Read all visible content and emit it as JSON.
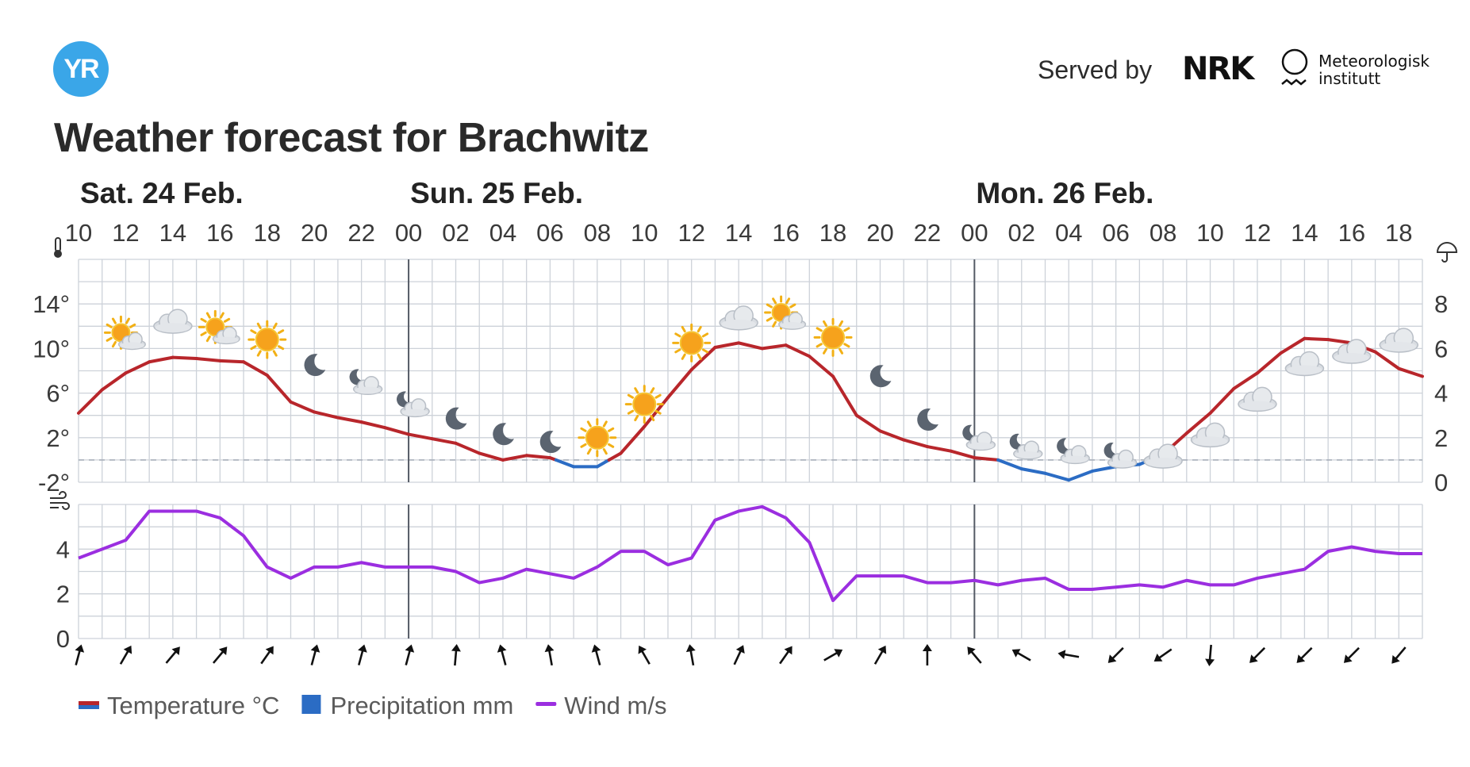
{
  "header": {
    "logo_text": "YR",
    "served_by": "Served by",
    "nrk_text": "NRK",
    "met_line1": "Meteorologisk",
    "met_line2": "institutt",
    "title": "Weather forecast for Brachwitz"
  },
  "colors": {
    "temp_warm": "#b8262b",
    "temp_cold": "#2b6cc4",
    "precip": "#2b6cc4",
    "wind": "#9b2ee0",
    "grid": "#cdd2d9",
    "logo": "#3aa6e8"
  },
  "icons": [
    "thermometer-icon",
    "umbrella-icon",
    "wind-icon",
    "sun-icon",
    "moon-icon",
    "cloud-icon",
    "partly-cloudy-day-icon",
    "partly-cloudy-night-icon",
    "wind-arrow-icon"
  ],
  "chart_data": {
    "type": "line",
    "days": [
      {
        "label": "Sat. 24 Feb.",
        "start_hour_index": 0
      },
      {
        "label": "Sun. 25 Feb.",
        "start_hour_index": 14
      },
      {
        "label": "Mon. 26 Feb.",
        "start_hour_index": 38
      }
    ],
    "hour_labels": [
      "10",
      "12",
      "14",
      "16",
      "18",
      "20",
      "22",
      "00",
      "02",
      "04",
      "06",
      "08",
      "10",
      "12",
      "14",
      "16",
      "18",
      "20",
      "22",
      "00",
      "02",
      "04",
      "06",
      "08",
      "10",
      "12",
      "14",
      "16",
      "18"
    ],
    "hour_label_indices": [
      0,
      2,
      4,
      6,
      8,
      10,
      12,
      14,
      16,
      18,
      20,
      22,
      24,
      26,
      28,
      30,
      32,
      34,
      36,
      38,
      40,
      42,
      44,
      46,
      48,
      50,
      52,
      54,
      56
    ],
    "temp_axis_labels": [
      "14°",
      "10°",
      "6°",
      "2°",
      "-2°"
    ],
    "temp_axis_values": [
      14,
      10,
      6,
      2,
      -2
    ],
    "temp_ylim": [
      -2,
      18
    ],
    "precip_axis_labels": [
      "8",
      "6",
      "4",
      "2",
      "0"
    ],
    "precip_axis_values": [
      8,
      6,
      4,
      2,
      0
    ],
    "precip_ylim": [
      0,
      10
    ],
    "wind_axis_labels": [
      "4",
      "2",
      "0"
    ],
    "wind_axis_values": [
      4,
      2,
      0
    ],
    "wind_ylim": [
      0,
      6
    ],
    "series": [
      {
        "name": "Temperature °C",
        "x": [
          0,
          1,
          2,
          3,
          4,
          5,
          6,
          7,
          8,
          9,
          10,
          11,
          12,
          13,
          14,
          15,
          16,
          17,
          18,
          19,
          20,
          21,
          22,
          23,
          24,
          25,
          26,
          27,
          28,
          29,
          30,
          31,
          32,
          33,
          34,
          35,
          36,
          37,
          38,
          39,
          40,
          41,
          42,
          43,
          44,
          45,
          46,
          47,
          48,
          49,
          50,
          51,
          52,
          53,
          54,
          55,
          56,
          57
        ],
        "values": [
          4.2,
          6.3,
          7.8,
          8.8,
          9.2,
          9.1,
          8.9,
          8.8,
          7.6,
          5.2,
          4.3,
          3.8,
          3.4,
          2.9,
          2.3,
          1.9,
          1.5,
          0.6,
          0.0,
          0.4,
          0.2,
          -0.6,
          -0.6,
          0.6,
          3.0,
          5.6,
          8.1,
          10.1,
          10.5,
          10.0,
          10.3,
          9.3,
          7.5,
          4.0,
          2.6,
          1.8,
          1.2,
          0.8,
          0.2,
          0.0,
          -0.8,
          -1.2,
          -1.8,
          -1.0,
          -0.6,
          -0.4,
          0.5,
          2.4,
          4.2,
          6.4,
          7.8,
          9.6,
          10.9,
          10.8,
          10.5,
          9.7,
          8.2,
          7.5
        ]
      },
      {
        "name": "Wind m/s",
        "x": [
          0,
          1,
          2,
          3,
          4,
          5,
          6,
          7,
          8,
          9,
          10,
          11,
          12,
          13,
          14,
          15,
          16,
          17,
          18,
          19,
          20,
          21,
          22,
          23,
          24,
          25,
          26,
          27,
          28,
          29,
          30,
          31,
          32,
          33,
          34,
          35,
          36,
          37,
          38,
          39,
          40,
          41,
          42,
          43,
          44,
          45,
          46,
          47,
          48,
          49,
          50,
          51,
          52,
          53,
          54,
          55,
          56,
          57
        ],
        "values": [
          3.6,
          4.0,
          4.4,
          5.7,
          5.7,
          5.7,
          5.4,
          4.6,
          3.2,
          2.7,
          3.2,
          3.2,
          3.4,
          3.2,
          3.2,
          3.2,
          3.0,
          2.5,
          2.7,
          3.1,
          2.9,
          2.7,
          3.2,
          3.9,
          3.9,
          3.3,
          3.6,
          5.3,
          5.7,
          5.9,
          5.4,
          4.3,
          1.7,
          2.8,
          2.8,
          2.8,
          2.5,
          2.5,
          2.6,
          2.4,
          2.6,
          2.7,
          2.2,
          2.2,
          2.3,
          2.4,
          2.3,
          2.6,
          2.4,
          2.4,
          2.7,
          2.9,
          3.1,
          3.9,
          4.1,
          3.9,
          3.8,
          3.8
        ]
      },
      {
        "name": "Precipitation mm",
        "x": [],
        "values": []
      }
    ],
    "weather_icons": [
      {
        "i": 2,
        "t": "partly-sun"
      },
      {
        "i": 4,
        "t": "cloud"
      },
      {
        "i": 6,
        "t": "partly-sun"
      },
      {
        "i": 8,
        "t": "sun"
      },
      {
        "i": 10,
        "t": "moon"
      },
      {
        "i": 12,
        "t": "partly-moon"
      },
      {
        "i": 14,
        "t": "partly-moon"
      },
      {
        "i": 16,
        "t": "moon"
      },
      {
        "i": 18,
        "t": "moon"
      },
      {
        "i": 20,
        "t": "moon"
      },
      {
        "i": 22,
        "t": "sun"
      },
      {
        "i": 24,
        "t": "sun"
      },
      {
        "i": 26,
        "t": "sun"
      },
      {
        "i": 28,
        "t": "cloud"
      },
      {
        "i": 30,
        "t": "partly-sun"
      },
      {
        "i": 32,
        "t": "sun"
      },
      {
        "i": 34,
        "t": "moon"
      },
      {
        "i": 36,
        "t": "moon"
      },
      {
        "i": 38,
        "t": "partly-moon"
      },
      {
        "i": 40,
        "t": "partly-moon"
      },
      {
        "i": 42,
        "t": "partly-moon"
      },
      {
        "i": 44,
        "t": "partly-moon"
      },
      {
        "i": 46,
        "t": "cloud"
      },
      {
        "i": 48,
        "t": "cloud"
      },
      {
        "i": 50,
        "t": "cloud"
      },
      {
        "i": 52,
        "t": "cloud"
      },
      {
        "i": 54,
        "t": "cloud"
      },
      {
        "i": 56,
        "t": "cloud"
      }
    ],
    "weather_icon_temps": [
      11,
      12.3,
      11.5,
      10.8,
      8.5,
      7,
      5,
      3.7,
      2.3,
      1.6,
      2,
      5,
      10.5,
      12.6,
      12.8,
      11,
      7.5,
      3.6,
      2,
      1.2,
      0.8,
      0.4,
      0.2,
      2.1,
      5.3,
      8.5,
      9.6,
      10.6,
      9.8
    ],
    "wind_direction_degrees": [
      15,
      30,
      40,
      40,
      35,
      15,
      15,
      15,
      5,
      345,
      350,
      345,
      330,
      350,
      25,
      35,
      60,
      30,
      0,
      320,
      300,
      280,
      225,
      235,
      185,
      225,
      225,
      225,
      220
    ],
    "legend": [
      {
        "label": "Temperature °C",
        "kind": "temp"
      },
      {
        "label": "Precipitation mm",
        "kind": "precip"
      },
      {
        "label": "Wind m/s",
        "kind": "wind"
      }
    ],
    "grid": true
  }
}
